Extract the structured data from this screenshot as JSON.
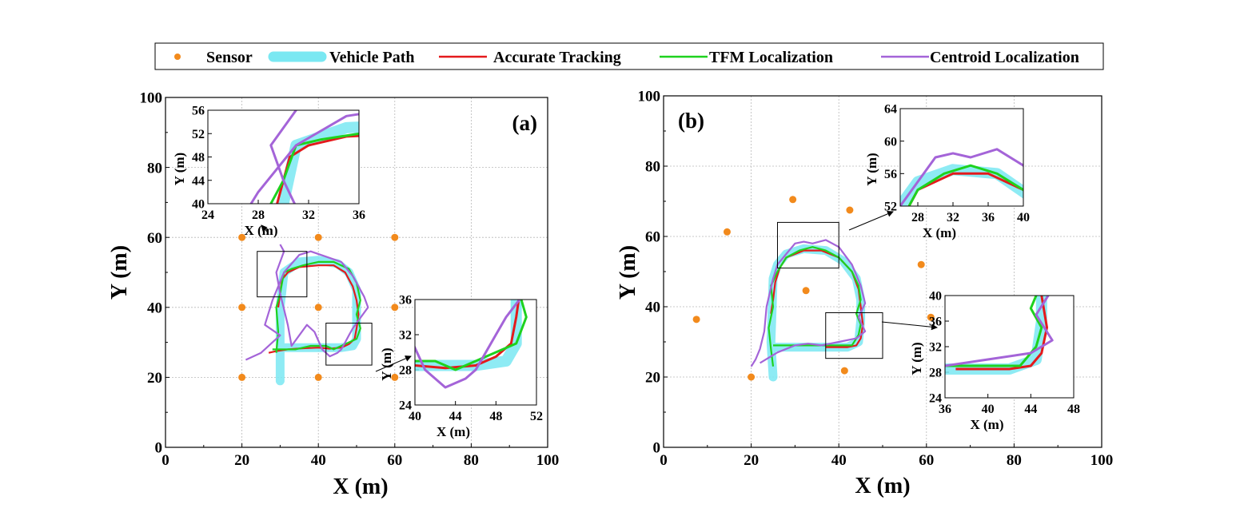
{
  "legend": {
    "items": [
      {
        "label": "Sensor",
        "color": "#f28a1c",
        "style": "dot"
      },
      {
        "label": "Vehicle Path",
        "color": "#7ae8f2",
        "style": "thick"
      },
      {
        "label": "Accurate Tracking",
        "color": "#e41a1c",
        "style": "line"
      },
      {
        "label": "TFM Localization",
        "color": "#1ed21e",
        "style": "line"
      },
      {
        "label": "Centroid Localization",
        "color": "#a464d8",
        "style": "line"
      }
    ]
  },
  "panels": [
    {
      "panel_label": "(a)",
      "xlabel": "X (m)",
      "ylabel": "Y (m)",
      "xlim": [
        0,
        100
      ],
      "ylim": [
        0,
        100
      ],
      "xticks": [
        0,
        20,
        40,
        60,
        80,
        100
      ],
      "yticks": [
        0,
        20,
        40,
        60,
        80,
        100
      ],
      "insets": [
        {
          "xlabel": "X (m)",
          "ylabel": "Y (m)",
          "xlim": [
            24,
            36
          ],
          "ylim": [
            40,
            56
          ],
          "xticks": [
            24,
            28,
            32,
            36
          ],
          "yticks": [
            40,
            44,
            48,
            52,
            56
          ]
        },
        {
          "xlabel": "X (m)",
          "ylabel": "Y (m)",
          "xlim": [
            40,
            52
          ],
          "ylim": [
            24,
            36
          ],
          "xticks": [
            40,
            44,
            48,
            52
          ],
          "yticks": [
            24,
            28,
            32,
            36
          ]
        }
      ]
    },
    {
      "panel_label": "(b)",
      "xlabel": "X (m)",
      "ylabel": "Y (m)",
      "xlim": [
        0,
        100
      ],
      "ylim": [
        0,
        100
      ],
      "xticks": [
        0,
        20,
        40,
        60,
        80,
        100
      ],
      "yticks": [
        0,
        20,
        40,
        60,
        80,
        100
      ],
      "insets": [
        {
          "xlabel": "X (m)",
          "ylabel": "Y (m)",
          "xlim": [
            26,
            40
          ],
          "ylim": [
            52,
            64
          ],
          "xticks": [
            28,
            32,
            36,
            40
          ],
          "yticks": [
            52,
            56,
            60,
            64
          ]
        },
        {
          "xlabel": "X (m)",
          "ylabel": "Y (m)",
          "xlim": [
            36,
            48
          ],
          "ylim": [
            24,
            40
          ],
          "xticks": [
            36,
            40,
            44,
            48
          ],
          "yticks": [
            24,
            28,
            32,
            36,
            40
          ]
        }
      ]
    }
  ],
  "chart_data": [
    {
      "type": "line",
      "panel": "(a)",
      "xlim": [
        0,
        100
      ],
      "ylim": [
        0,
        100
      ],
      "grid": true,
      "sensors": [
        [
          20,
          60
        ],
        [
          40,
          60
        ],
        [
          60,
          60
        ],
        [
          20,
          40
        ],
        [
          40,
          40
        ],
        [
          60,
          40
        ],
        [
          20,
          20
        ],
        [
          40,
          20
        ],
        [
          60,
          20
        ]
      ],
      "series": [
        {
          "name": "Vehicle Path",
          "color": "#7ae8f2",
          "x": [
            30,
            30,
            30,
            31,
            35,
            40,
            45,
            48,
            50,
            50,
            50,
            50,
            49,
            46,
            40,
            35,
            30
          ],
          "y": [
            19,
            30,
            40,
            50,
            53,
            53.5,
            52.5,
            50,
            45,
            40,
            35,
            31,
            29,
            28.5,
            28.5,
            28.5,
            28.5
          ]
        },
        {
          "name": "Accurate Tracking",
          "color": "#e41a1c",
          "x": [
            29.5,
            30,
            30.5,
            32,
            35,
            40,
            44,
            47,
            49,
            50,
            50.5,
            50,
            49.5,
            48,
            46,
            43,
            40,
            36,
            32,
            29,
            27
          ],
          "y": [
            40,
            44,
            48,
            50,
            51.5,
            52,
            52,
            50,
            46,
            42,
            38,
            34,
            31,
            29.5,
            28.5,
            28.2,
            28.5,
            28.3,
            28,
            27.5,
            27
          ]
        },
        {
          "name": "TFM Localization",
          "color": "#1ed21e",
          "x": [
            29,
            29.5,
            29,
            30,
            31,
            33,
            36,
            40,
            44,
            48,
            50,
            51,
            50,
            51,
            50,
            48,
            46,
            44,
            42,
            38,
            34,
            30,
            28
          ],
          "y": [
            27,
            33,
            40,
            44,
            50,
            51,
            52,
            53,
            53,
            51,
            47,
            42,
            38,
            34,
            31,
            30,
            29,
            28,
            29,
            29,
            28,
            28,
            28
          ]
        },
        {
          "name": "Centroid Localization",
          "color": "#a464d8",
          "x": [
            21,
            25,
            28,
            30,
            26,
            28,
            31,
            35,
            38,
            42,
            46,
            49,
            51,
            52,
            53,
            51,
            49,
            48,
            47,
            46,
            45,
            43,
            41,
            39,
            37,
            35,
            33,
            32,
            30,
            29,
            31,
            30
          ],
          "y": [
            25,
            27,
            30,
            32,
            35,
            42,
            50,
            55,
            56,
            54.5,
            53,
            49,
            45,
            43,
            40,
            37,
            34,
            32,
            30,
            28,
            27,
            26,
            28,
            33,
            35,
            32,
            29,
            35,
            44,
            50,
            56,
            58
          ]
        }
      ]
    },
    {
      "type": "line",
      "panel": "(b)",
      "xlim": [
        0,
        100
      ],
      "ylim": [
        0,
        100
      ],
      "grid": true,
      "sensors": [
        [
          29.5,
          70.5
        ],
        [
          42.5,
          67.5
        ],
        [
          14.5,
          61.3
        ],
        [
          58.8,
          52
        ],
        [
          32.5,
          44.6
        ],
        [
          7.5,
          36.4
        ],
        [
          61,
          37
        ],
        [
          20,
          20
        ],
        [
          41.3,
          21.8
        ]
      ],
      "series": [
        {
          "name": "Vehicle Path",
          "color": "#7ae8f2",
          "x": [
            25,
            24.5,
            24.8,
            25,
            26,
            28,
            32,
            37,
            41,
            44,
            45,
            45,
            44.5,
            42,
            38,
            32,
            28,
            25
          ],
          "y": [
            20,
            30,
            40,
            48,
            52,
            55,
            56.5,
            56,
            53,
            48,
            42,
            36,
            30,
            28.5,
            28.5,
            28.5,
            28.5,
            28.5
          ]
        },
        {
          "name": "Accurate Tracking",
          "color": "#e41a1c",
          "x": [
            24.5,
            25,
            25.5,
            26.5,
            28,
            32,
            36,
            40,
            43,
            44.5,
            45,
            45.5,
            45,
            44,
            42,
            40,
            37
          ],
          "y": [
            38,
            42,
            47,
            51,
            54,
            56,
            56,
            54,
            50,
            45,
            40,
            35,
            31,
            29,
            28.5,
            28.5,
            28.5
          ]
        },
        {
          "name": "TFM Localization",
          "color": "#1ed21e",
          "x": [
            25,
            24.5,
            24,
            25,
            24.5,
            26,
            28,
            31,
            34,
            37,
            40,
            43,
            44.5,
            45,
            44,
            45,
            44.5,
            43,
            40,
            36,
            32,
            28,
            25
          ],
          "y": [
            23,
            28,
            34,
            40,
            46,
            50,
            54,
            56,
            57,
            56,
            54,
            50,
            46,
            42,
            38,
            35,
            32,
            29,
            29,
            29,
            29,
            29,
            29
          ]
        },
        {
          "name": "Centroid Localization",
          "color": "#a464d8",
          "x": [
            20,
            21,
            22,
            23,
            23.5,
            25,
            26,
            28,
            30,
            32,
            34,
            37,
            40,
            43,
            45,
            46,
            44.5,
            46,
            44,
            40,
            36,
            33,
            30,
            26,
            22
          ],
          "y": [
            23,
            25,
            28,
            33,
            40,
            48,
            52,
            55,
            58,
            58.5,
            58,
            59,
            57,
            52,
            46,
            41,
            37,
            33,
            31,
            30,
            29,
            29.5,
            29,
            27,
            24
          ]
        }
      ]
    }
  ]
}
